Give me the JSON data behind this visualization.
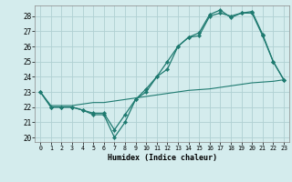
{
  "xlabel": "Humidex (Indice chaleur)",
  "background_color": "#d4eced",
  "grid_color": "#b0d0d2",
  "line_color": "#1e7a70",
  "xlim": [
    -0.5,
    23.5
  ],
  "ylim": [
    19.7,
    28.7
  ],
  "yticks": [
    20,
    21,
    22,
    23,
    24,
    25,
    26,
    27,
    28
  ],
  "xticks": [
    0,
    1,
    2,
    3,
    4,
    5,
    6,
    7,
    8,
    9,
    10,
    11,
    12,
    13,
    14,
    15,
    16,
    17,
    18,
    19,
    20,
    21,
    22,
    23
  ],
  "series1_x": [
    0,
    1,
    2,
    3,
    4,
    5,
    6,
    7,
    8,
    9,
    10,
    11,
    12,
    13,
    14,
    15,
    16,
    17,
    18,
    19,
    20,
    21,
    22,
    23
  ],
  "series1_y": [
    23,
    22,
    22,
    22,
    21.8,
    21.5,
    21.5,
    20,
    21,
    22.5,
    23,
    24,
    25,
    26,
    26.6,
    26.7,
    28,
    28.2,
    28,
    28.2,
    28.2,
    26.7,
    25,
    23.8
  ],
  "series2_x": [
    0,
    1,
    2,
    3,
    4,
    5,
    6,
    7,
    8,
    9,
    10,
    11,
    12,
    13,
    14,
    15,
    16,
    17,
    18,
    19,
    20,
    21,
    22,
    23
  ],
  "series2_y": [
    23,
    22,
    22,
    22,
    21.8,
    21.6,
    21.6,
    20.5,
    21.5,
    22.5,
    23.2,
    24,
    24.5,
    26,
    26.6,
    26.9,
    28.1,
    28.4,
    27.9,
    28.2,
    28.3,
    26.8,
    25,
    23.8
  ],
  "series3_x": [
    0,
    1,
    2,
    3,
    4,
    5,
    6,
    7,
    8,
    9,
    10,
    11,
    12,
    13,
    14,
    15,
    16,
    17,
    18,
    19,
    20,
    21,
    22,
    23
  ],
  "series3_y": [
    23,
    22.1,
    22.1,
    22.1,
    22.2,
    22.3,
    22.3,
    22.4,
    22.5,
    22.6,
    22.7,
    22.8,
    22.9,
    23.0,
    23.1,
    23.15,
    23.2,
    23.3,
    23.4,
    23.5,
    23.6,
    23.65,
    23.7,
    23.8
  ]
}
